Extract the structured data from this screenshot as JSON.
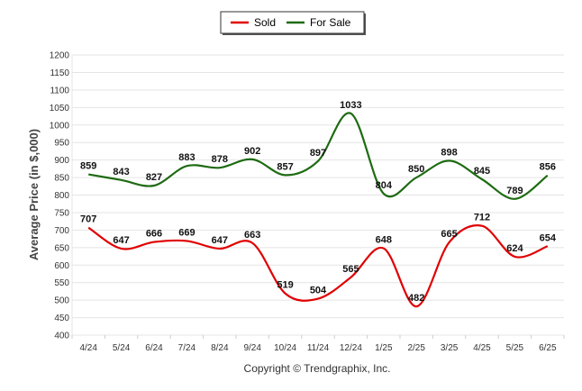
{
  "chart_data": {
    "type": "line",
    "categories": [
      "4/24",
      "5/24",
      "6/24",
      "7/24",
      "8/24",
      "9/24",
      "10/24",
      "11/24",
      "12/24",
      "1/25",
      "2/25",
      "3/25",
      "4/25",
      "5/25",
      "6/25"
    ],
    "series": [
      {
        "name": "Sold",
        "color": "#e00000",
        "values": [
          707,
          647,
          666,
          669,
          647,
          663,
          519,
          504,
          565,
          648,
          482,
          665,
          712,
          624,
          654
        ]
      },
      {
        "name": "For Sale",
        "color": "#1e6b12",
        "values": [
          859,
          843,
          827,
          883,
          878,
          902,
          857,
          897,
          1033,
          804,
          850,
          898,
          845,
          789,
          856
        ]
      }
    ],
    "ylabel": "Average Price (in $,000)",
    "xlabel": "",
    "ylim": [
      400,
      1200
    ],
    "ytick_step": 50,
    "grid": true,
    "legend_position": "top-center",
    "footer": "Copyright © Trendgraphix, Inc."
  }
}
